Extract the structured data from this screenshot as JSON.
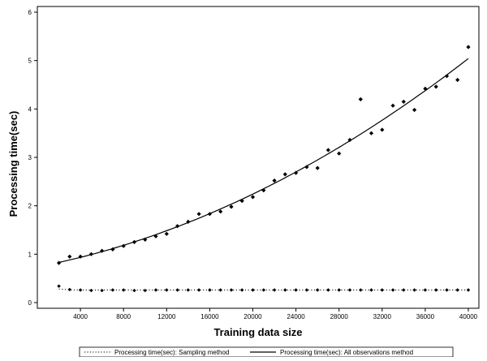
{
  "chart_data": {
    "type": "scatter",
    "xlabel": "Training data size",
    "ylabel": "Processing time(sec)",
    "xlim": [
      0,
      40000
    ],
    "ylim": [
      0,
      6
    ],
    "x_ticks": [
      4000,
      8000,
      12000,
      16000,
      20000,
      24000,
      28000,
      32000,
      36000,
      40000
    ],
    "y_ticks": [
      0,
      1,
      2,
      3,
      4,
      5,
      6
    ],
    "grid": false,
    "legend_position": "bottom",
    "series": [
      {
        "name": "Processing time(sec): Sampling method",
        "marker": "diamond",
        "line_style": "dotted",
        "x": [
          2000,
          3000,
          4000,
          5000,
          6000,
          7000,
          8000,
          9000,
          10000,
          11000,
          12000,
          13000,
          14000,
          15000,
          16000,
          17000,
          18000,
          19000,
          20000,
          21000,
          22000,
          23000,
          24000,
          25000,
          26000,
          27000,
          28000,
          29000,
          30000,
          31000,
          32000,
          33000,
          34000,
          35000,
          36000,
          37000,
          38000,
          39000,
          40000
        ],
        "values": [
          0.34,
          0.27,
          0.26,
          0.25,
          0.25,
          0.26,
          0.26,
          0.25,
          0.25,
          0.26,
          0.26,
          0.26,
          0.26,
          0.26,
          0.26,
          0.26,
          0.26,
          0.26,
          0.26,
          0.26,
          0.26,
          0.26,
          0.26,
          0.26,
          0.26,
          0.26,
          0.26,
          0.26,
          0.26,
          0.26,
          0.26,
          0.26,
          0.26,
          0.26,
          0.26,
          0.26,
          0.26,
          0.26,
          0.26
        ],
        "fit": [
          0.28,
          0.265,
          0.26,
          0.26,
          0.26,
          0.26,
          0.26,
          0.26,
          0.26,
          0.26,
          0.26,
          0.26,
          0.26,
          0.26,
          0.26,
          0.26,
          0.26,
          0.26,
          0.26,
          0.26,
          0.26,
          0.26,
          0.26,
          0.26,
          0.26,
          0.26,
          0.26,
          0.26,
          0.26,
          0.26,
          0.26,
          0.26,
          0.26,
          0.26,
          0.26,
          0.26,
          0.26,
          0.26,
          0.26
        ]
      },
      {
        "name": "Processing time(sec): All observations method",
        "marker": "diamond",
        "line_style": "solid",
        "x": [
          2000,
          3000,
          4000,
          5000,
          6000,
          7000,
          8000,
          9000,
          10000,
          11000,
          12000,
          13000,
          14000,
          15000,
          16000,
          17000,
          18000,
          19000,
          20000,
          21000,
          22000,
          23000,
          24000,
          25000,
          26000,
          27000,
          28000,
          29000,
          30000,
          31000,
          32000,
          33000,
          34000,
          35000,
          36000,
          37000,
          38000,
          39000,
          40000
        ],
        "values": [
          0.82,
          0.95,
          0.95,
          1.0,
          1.07,
          1.1,
          1.17,
          1.25,
          1.3,
          1.37,
          1.42,
          1.58,
          1.67,
          1.83,
          1.83,
          1.88,
          1.98,
          2.1,
          2.18,
          2.32,
          2.52,
          2.65,
          2.68,
          2.8,
          2.78,
          3.15,
          3.08,
          3.36,
          4.2,
          3.5,
          3.57,
          4.07,
          4.15,
          3.98,
          4.42,
          4.46,
          4.68,
          4.6,
          5.28
        ]
      }
    ]
  }
}
